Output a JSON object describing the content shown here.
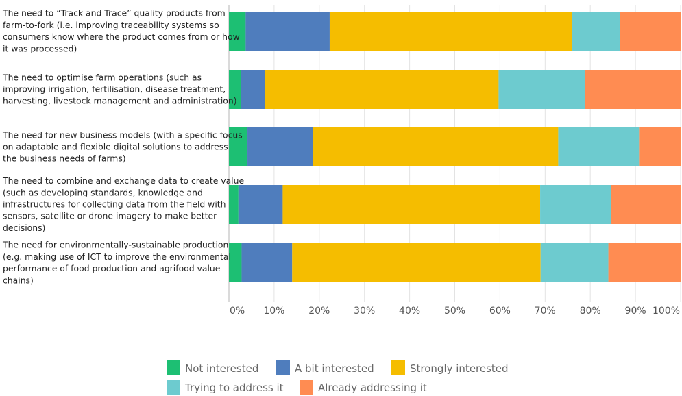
{
  "chart_data": {
    "type": "bar",
    "orientation": "horizontal",
    "stacked": true,
    "percent": true,
    "title": "",
    "xlabel": "",
    "ylabel": "",
    "xlim": [
      0,
      100
    ],
    "x_ticks": [
      "0%",
      "10%",
      "20%",
      "30%",
      "40%",
      "50%",
      "60%",
      "70%",
      "80%",
      "90%",
      "100%"
    ],
    "grid": "vertical",
    "legend_position": "bottom",
    "categories": [
      [
        "The need to “Track and Trace” quality products from",
        "farm-to-fork (i.e. improving traceability systems so",
        "consumers know where the product comes from or how",
        "it was processed)"
      ],
      [
        "The need to optimise farm operations (such as",
        "improving irrigation, fertilisation, disease treatment,",
        "harvesting, livestock management and administration)"
      ],
      [
        "The need for new business models (with a specific focus",
        "on adaptable and flexible digital solutions to address",
        "the business needs of farms)"
      ],
      [
        "The need to combine and exchange data to create value",
        "(such as developing standards, knowledge and",
        "infrastructures for collecting data from the field with",
        "sensors, satellite or drone imagery to make better",
        "decisions)"
      ],
      [
        "The need for environmentally-sustainable production",
        "(e.g. making use of ICT to improve the environmental",
        "performance of food production and agrifood value",
        "chains)"
      ]
    ],
    "series": [
      {
        "name": "Not interested",
        "color": "#1dbf73",
        "values": [
          3.7,
          2.6,
          4.1,
          2.1,
          2.8
        ]
      },
      {
        "name": "A bit interested",
        "color": "#4f7dbd",
        "values": [
          18.6,
          5.4,
          14.5,
          9.8,
          11.2
        ]
      },
      {
        "name": "Strongly interested",
        "color": "#f5bd00",
        "values": [
          53.7,
          51.7,
          54.3,
          57.0,
          55.0
        ]
      },
      {
        "name": "Trying to address it",
        "color": "#6dcbcf",
        "values": [
          10.6,
          19.1,
          17.9,
          15.7,
          15.0
        ]
      },
      {
        "name": "Already addressing it",
        "color": "#ff8c52",
        "values": [
          13.4,
          21.2,
          9.2,
          15.4,
          16.0
        ]
      }
    ]
  }
}
